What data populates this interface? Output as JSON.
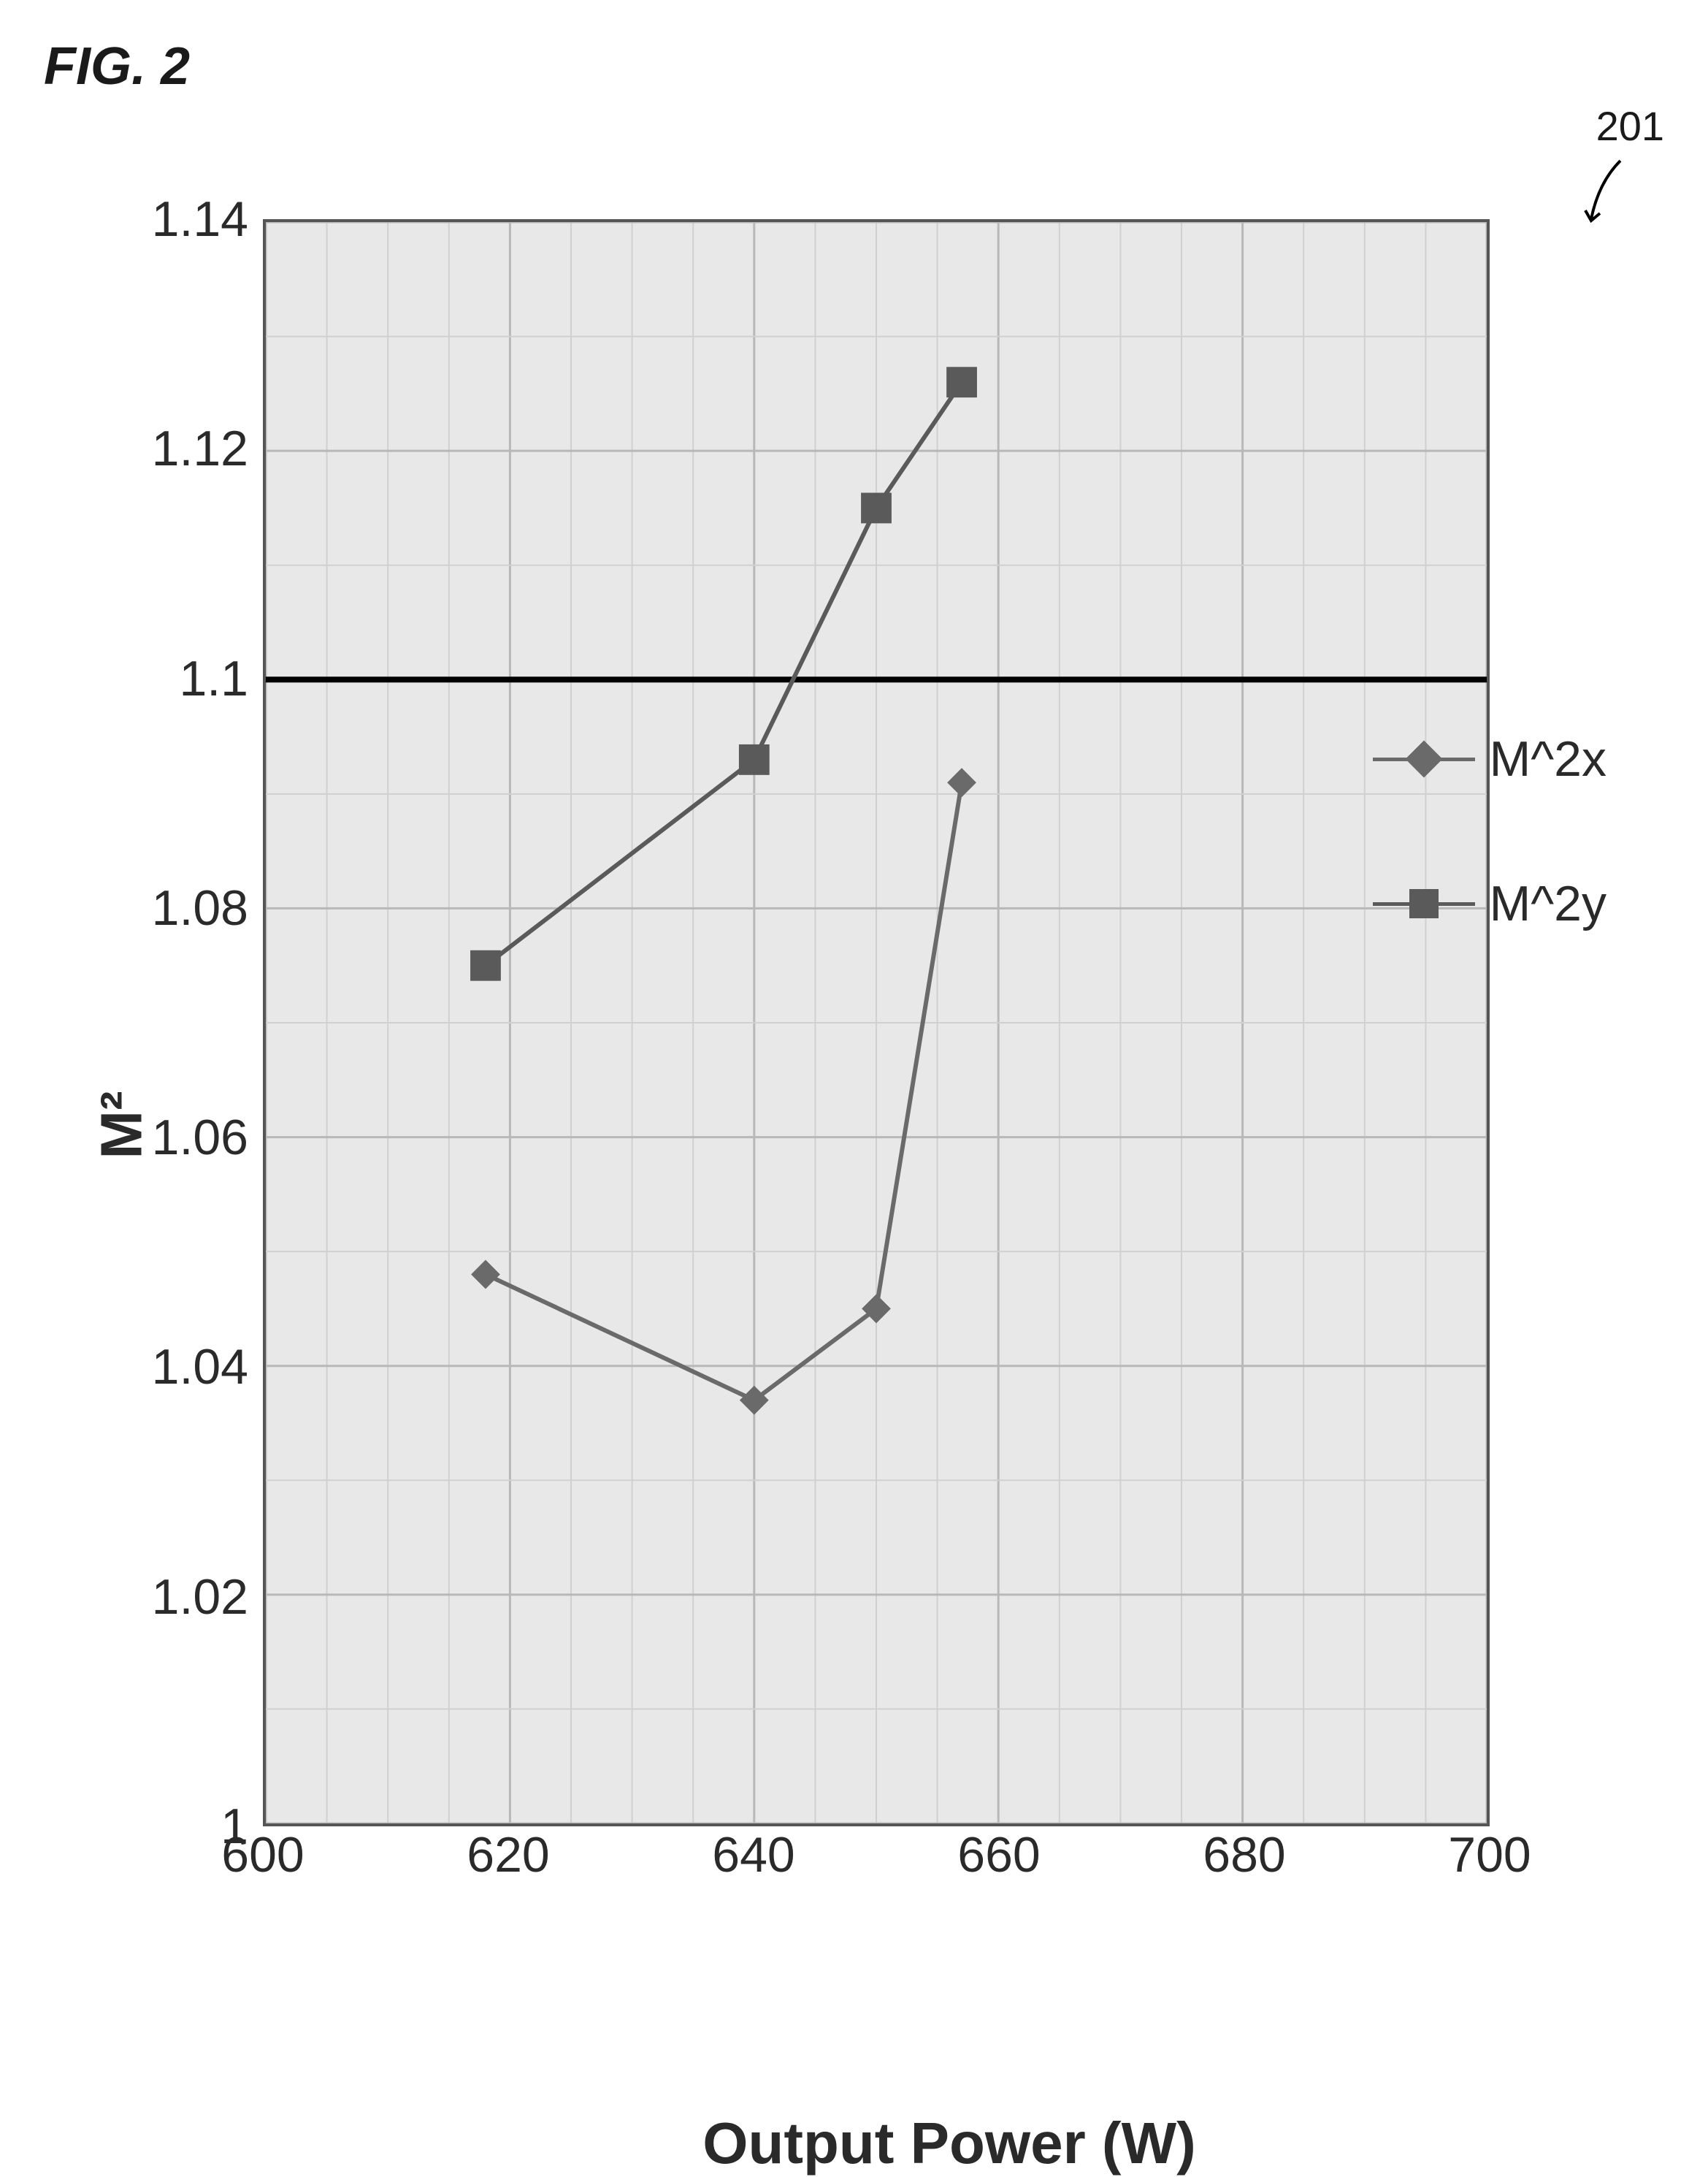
{
  "figure": {
    "label": "FIG. 2",
    "reference_number": "201"
  },
  "chart": {
    "type": "line",
    "background_color": "#e8e8e8",
    "grid_major_color": "#b8b8b8",
    "grid_minor_color": "#d0d0d0",
    "axis_color": "#555555",
    "reference_line_color": "#000000",
    "reference_line_y": 1.1,
    "reference_line_width": 8,
    "y_axis": {
      "label": "M²",
      "min": 1.0,
      "max": 1.14,
      "ticks": [
        1,
        1.02,
        1.04,
        1.06,
        1.08,
        1.1,
        1.12,
        1.14
      ],
      "label_fontsize": 80,
      "tick_fontsize": 68
    },
    "x_axis": {
      "label": "Output Power (W)",
      "min": 600,
      "max": 700,
      "ticks": [
        600,
        620,
        640,
        660,
        680,
        700
      ],
      "minor_step": 5,
      "label_fontsize": 80,
      "tick_fontsize": 68
    },
    "series": [
      {
        "name": "M^2x",
        "marker": "diamond",
        "marker_size": 40,
        "line_width": 6,
        "color": "#6a6a6a",
        "x": [
          618,
          640,
          650,
          657
        ],
        "y": [
          1.048,
          1.037,
          1.045,
          1.091
        ]
      },
      {
        "name": "M^2y",
        "marker": "square",
        "marker_size": 42,
        "line_width": 6,
        "color": "#5a5a5a",
        "x": [
          618,
          640,
          650,
          657
        ],
        "y": [
          1.075,
          1.093,
          1.115,
          1.126
        ]
      }
    ],
    "legend": {
      "position": "right",
      "items": [
        "M^2x",
        "M^2y"
      ],
      "fontsize": 68
    }
  }
}
